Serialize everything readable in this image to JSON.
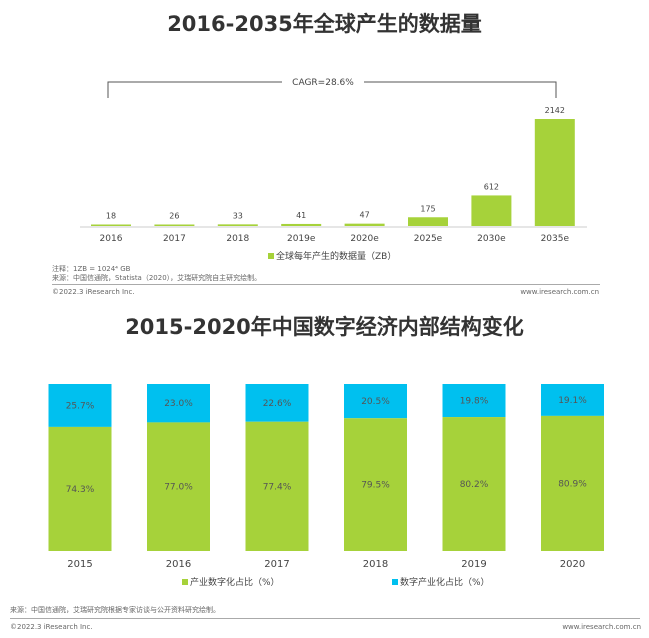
{
  "chart_data": [
    {
      "type": "bar",
      "title": "2016-2035年全球产生的数据量",
      "categories": [
        "2016",
        "2017",
        "2018",
        "2019e",
        "2020e",
        "2025e",
        "2030e",
        "2035e"
      ],
      "values": [
        18,
        26,
        33,
        41,
        47,
        175,
        612,
        2142
      ],
      "legend": "全球每年产生的数据量（ZB）",
      "annotation": "CAGR=28.6%",
      "color": "#a6d23a",
      "ylim": [
        0,
        2142
      ]
    },
    {
      "type": "bar",
      "stacked": true,
      "percent": true,
      "title": "2015-2020年中国数字经济内部结构变化",
      "categories": [
        "2015",
        "2016",
        "2017",
        "2018",
        "2019",
        "2020"
      ],
      "series": [
        {
          "name": "产业数字化占比（%）",
          "values": [
            74.3,
            77.0,
            77.4,
            79.5,
            80.2,
            80.9
          ],
          "labels": [
            "74.3%",
            "77.0%",
            "77.4%",
            "79.5%",
            "80.2%",
            "80.9%"
          ],
          "color": "#a6d23a"
        },
        {
          "name": "数字产业化占比（%）",
          "values": [
            25.7,
            23.0,
            22.6,
            20.5,
            19.8,
            19.1
          ],
          "labels": [
            "25.7%",
            "23.0%",
            "22.6%",
            "20.5%",
            "19.8%",
            "19.1%"
          ],
          "color": "#00c0ef"
        }
      ],
      "ylim": [
        0,
        100
      ]
    }
  ],
  "notes1": {
    "note": "注释：1ZB = 1024⁴ GB",
    "source": "来源：中国信通院，Statista（2020），艾瑞研究院自主研究绘制。"
  },
  "footer1": {
    "copyright": "©2022.3 iResearch Inc.",
    "url": "www.iresearch.com.cn"
  },
  "notes2": {
    "source": "来源：中国信通院，艾瑞研究院根据专家访谈与公开资料研究绘制。"
  },
  "footer2": {
    "copyright": "©2022.3 iResearch Inc.",
    "url": "www.iresearch.com.cn"
  }
}
